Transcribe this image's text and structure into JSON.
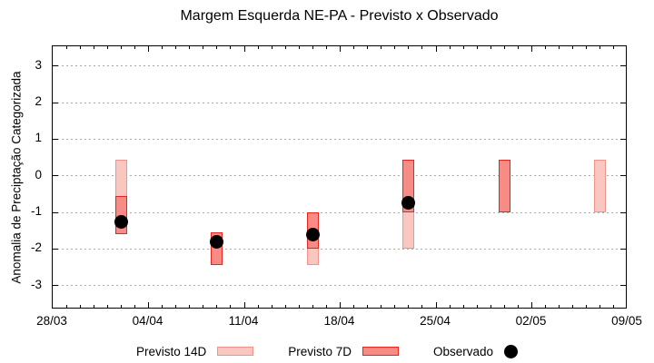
{
  "title": "Margem Esquerda NE-PA - Previsto x Observado",
  "chart_data": {
    "type": "bar",
    "title": "Margem Esquerda NE-PA - Previsto x Observado",
    "xlabel": "",
    "ylabel": "Anomalia de Preciptação Categorizada",
    "grid": "horizontal dotted gridlines at each integer y",
    "legend_position": "below plot, horizontal",
    "x_axis": {
      "start_label": "28/03",
      "end_label": "09/05",
      "range_days": 42,
      "major_tick_every_days": 7,
      "minor_tick_every_days": 1,
      "tick_labels": [
        "28/03",
        "04/04",
        "11/04",
        "18/04",
        "25/04",
        "02/05",
        "09/05"
      ]
    },
    "y_axis": {
      "ticks": [
        3,
        2,
        1,
        0,
        -1,
        -2,
        -3
      ],
      "ylim": [
        -3.66,
        3.55
      ]
    },
    "colors": {
      "previsto_14d_fill": "#f9c7c0",
      "previsto_14d_border": "#f2928a",
      "previsto_7d_fill": "#f78c87",
      "previsto_7d_border": "#e6251f",
      "observado": "#000000",
      "grid": "#a8a8a8",
      "axis": "#000000"
    },
    "series": [
      {
        "name": "Previsto 14D",
        "kind": "range-bar",
        "points": [
          {
            "date": "02/04",
            "day_offset": 5,
            "lo": -1.6,
            "hi": 0.45
          },
          {
            "date": "09/04",
            "day_offset": 12,
            "lo": -2.45,
            "hi": -1.55
          },
          {
            "date": "16/04",
            "day_offset": 19,
            "lo": -2.45,
            "hi": -1.0
          },
          {
            "date": "23/04",
            "day_offset": 26,
            "lo": -2.0,
            "hi": 0.45
          },
          {
            "date": "07/05",
            "day_offset": 40,
            "lo": -1.0,
            "hi": 0.45
          }
        ]
      },
      {
        "name": "Previsto 7D",
        "kind": "range-bar",
        "points": [
          {
            "date": "02/04",
            "day_offset": 5,
            "lo": -1.6,
            "hi": -0.55
          },
          {
            "date": "09/04",
            "day_offset": 12,
            "lo": -2.45,
            "hi": -1.55
          },
          {
            "date": "16/04",
            "day_offset": 19,
            "lo": -2.0,
            "hi": -1.0
          },
          {
            "date": "23/04",
            "day_offset": 26,
            "lo": -1.0,
            "hi": 0.45
          },
          {
            "date": "30/04",
            "day_offset": 33,
            "lo": -1.0,
            "hi": 0.45
          }
        ]
      },
      {
        "name": "Observado",
        "kind": "scatter",
        "points": [
          {
            "date": "02/04",
            "day_offset": 5,
            "value": -1.25
          },
          {
            "date": "09/04",
            "day_offset": 12,
            "value": -1.8
          },
          {
            "date": "16/04",
            "day_offset": 19,
            "value": -1.6
          },
          {
            "date": "23/04",
            "day_offset": 26,
            "value": -0.75
          }
        ]
      }
    ],
    "legend": [
      {
        "label": "Previsto 14D",
        "swatch": "light-pink-box"
      },
      {
        "label": "Previsto 7D",
        "swatch": "red-box"
      },
      {
        "label": "Observado",
        "swatch": "black-dot"
      }
    ]
  }
}
